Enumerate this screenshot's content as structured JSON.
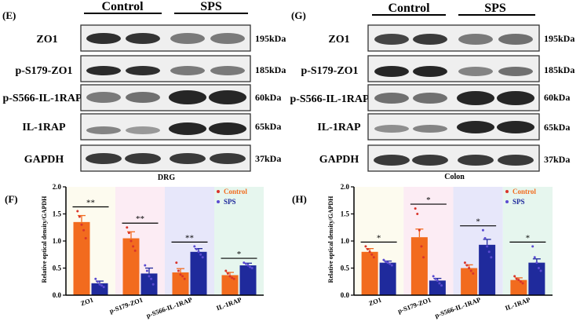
{
  "colors": {
    "control": "#f26b1e",
    "sps": "#1f2a9c",
    "band": "#1a1a1a",
    "bg_zo1": "#fdfbef",
    "bg_ps179": "#fcecf4",
    "bg_ps566": "#e7e7fa",
    "bg_il1rap": "#e6f6ee"
  },
  "panels": [
    {
      "panel_letter": "(E)",
      "tissue_label": "DRG",
      "groups": {
        "control": "Control",
        "sps": "SPS"
      },
      "blots": [
        {
          "protein": "ZO1",
          "size": "195kDa",
          "intensities": [
            0.9,
            0.88,
            0.55,
            0.55
          ]
        },
        {
          "protein": "p-S179-ZO1",
          "size": "185kDa",
          "intensities": [
            0.92,
            0.9,
            0.55,
            0.55
          ]
        },
        {
          "protein": "p-S566-IL-1RAP",
          "size": "60kDa",
          "intensities": [
            0.55,
            0.6,
            0.95,
            0.95
          ]
        },
        {
          "protein": "IL-1RAP",
          "size": "65kDa",
          "intensities": [
            0.5,
            0.4,
            0.95,
            0.95
          ]
        },
        {
          "protein": "GAPDH",
          "size": "37kDa",
          "intensities": [
            0.85,
            0.85,
            0.85,
            0.85
          ]
        }
      ]
    },
    {
      "panel_letter": "(G)",
      "tissue_label": "Colon",
      "groups": {
        "control": "Control",
        "sps": "SPS"
      },
      "blots": [
        {
          "protein": "ZO1",
          "size": "195kDa",
          "intensities": [
            0.8,
            0.85,
            0.55,
            0.6
          ]
        },
        {
          "protein": "p-S179-ZO1",
          "size": "185kDa",
          "intensities": [
            0.95,
            0.95,
            0.5,
            0.6
          ]
        },
        {
          "protein": "p-S566-IL-1RAP",
          "size": "60kDa",
          "intensities": [
            0.6,
            0.6,
            0.95,
            0.95
          ]
        },
        {
          "protein": "IL-1RAP",
          "size": "65kDa",
          "intensities": [
            0.45,
            0.5,
            0.95,
            0.95
          ]
        },
        {
          "protein": "GAPDH",
          "size": "37kDa",
          "intensities": [
            0.85,
            0.85,
            0.85,
            0.85
          ]
        }
      ]
    }
  ],
  "chart_data": [
    {
      "panel_letter": "(F)",
      "type": "bar",
      "title": "",
      "ylabel": "Relative optical density/GAPDH",
      "xlabel": "",
      "ylim": [
        0,
        2.0
      ],
      "yticks": [
        "0.0",
        "0.5",
        "1.0",
        "1.5",
        "2.0"
      ],
      "categories": [
        "ZO1",
        "p-S179-ZO1",
        "p-S566-IL-1RAP",
        "IL-1RAP"
      ],
      "legend": [
        "Control",
        "SPS"
      ],
      "series": [
        {
          "name": "Control",
          "values": [
            1.35,
            1.05,
            0.42,
            0.37
          ],
          "errors": [
            0.12,
            0.12,
            0.07,
            0.05
          ],
          "points": [
            [
              1.55,
              1.45,
              1.3,
              1.2,
              1.05
            ],
            [
              1.25,
              1.15,
              1.0,
              0.9,
              0.82
            ],
            [
              0.6,
              0.45,
              0.38,
              0.35,
              0.3
            ],
            [
              0.45,
              0.4,
              0.35,
              0.32,
              0.3
            ]
          ]
        },
        {
          "name": "SPS",
          "values": [
            0.22,
            0.4,
            0.8,
            0.55
          ],
          "errors": [
            0.04,
            0.1,
            0.06,
            0.04
          ],
          "points": [
            [
              0.3,
              0.25,
              0.2,
              0.18,
              0.15
            ],
            [
              0.55,
              0.45,
              0.35,
              0.3,
              0.2
            ],
            [
              0.9,
              0.85,
              0.8,
              0.75,
              0.7
            ],
            [
              0.6,
              0.58,
              0.55,
              0.52,
              0.5
            ]
          ]
        }
      ],
      "significance": [
        "**",
        "**",
        "**",
        "*"
      ]
    },
    {
      "panel_letter": "(H)",
      "type": "bar",
      "title": "",
      "ylabel": "Relative optical density/GAPDH",
      "xlabel": "",
      "ylim": [
        0,
        2.0
      ],
      "yticks": [
        "0.0",
        "0.5",
        "1.0",
        "1.5",
        "2.0"
      ],
      "categories": [
        "ZO1",
        "p-S179-ZO1",
        "p-S566-IL-1RAP",
        "IL-1RAP"
      ],
      "legend": [
        "Control",
        "SPS"
      ],
      "series": [
        {
          "name": "Control",
          "values": [
            0.8,
            1.07,
            0.5,
            0.28
          ],
          "errors": [
            0.06,
            0.15,
            0.06,
            0.04
          ],
          "points": [
            [
              0.9,
              0.85,
              0.8,
              0.75,
              0.7
            ],
            [
              1.6,
              1.5,
              1.2,
              0.9,
              0.7
            ],
            [
              0.6,
              0.55,
              0.5,
              0.45,
              0.4
            ],
            [
              0.35,
              0.3,
              0.28,
              0.25,
              0.22
            ]
          ]
        },
        {
          "name": "SPS",
          "values": [
            0.6,
            0.27,
            0.93,
            0.6
          ],
          "errors": [
            0.03,
            0.04,
            0.1,
            0.07
          ],
          "points": [
            [
              0.65,
              0.62,
              0.6,
              0.58,
              0.55
            ],
            [
              0.35,
              0.3,
              0.27,
              0.22,
              0.18
            ],
            [
              1.2,
              1.05,
              0.9,
              0.8,
              0.7
            ],
            [
              0.9,
              0.7,
              0.6,
              0.5,
              0.45
            ]
          ]
        }
      ],
      "significance": [
        "*",
        "*",
        "*",
        "*"
      ]
    }
  ]
}
